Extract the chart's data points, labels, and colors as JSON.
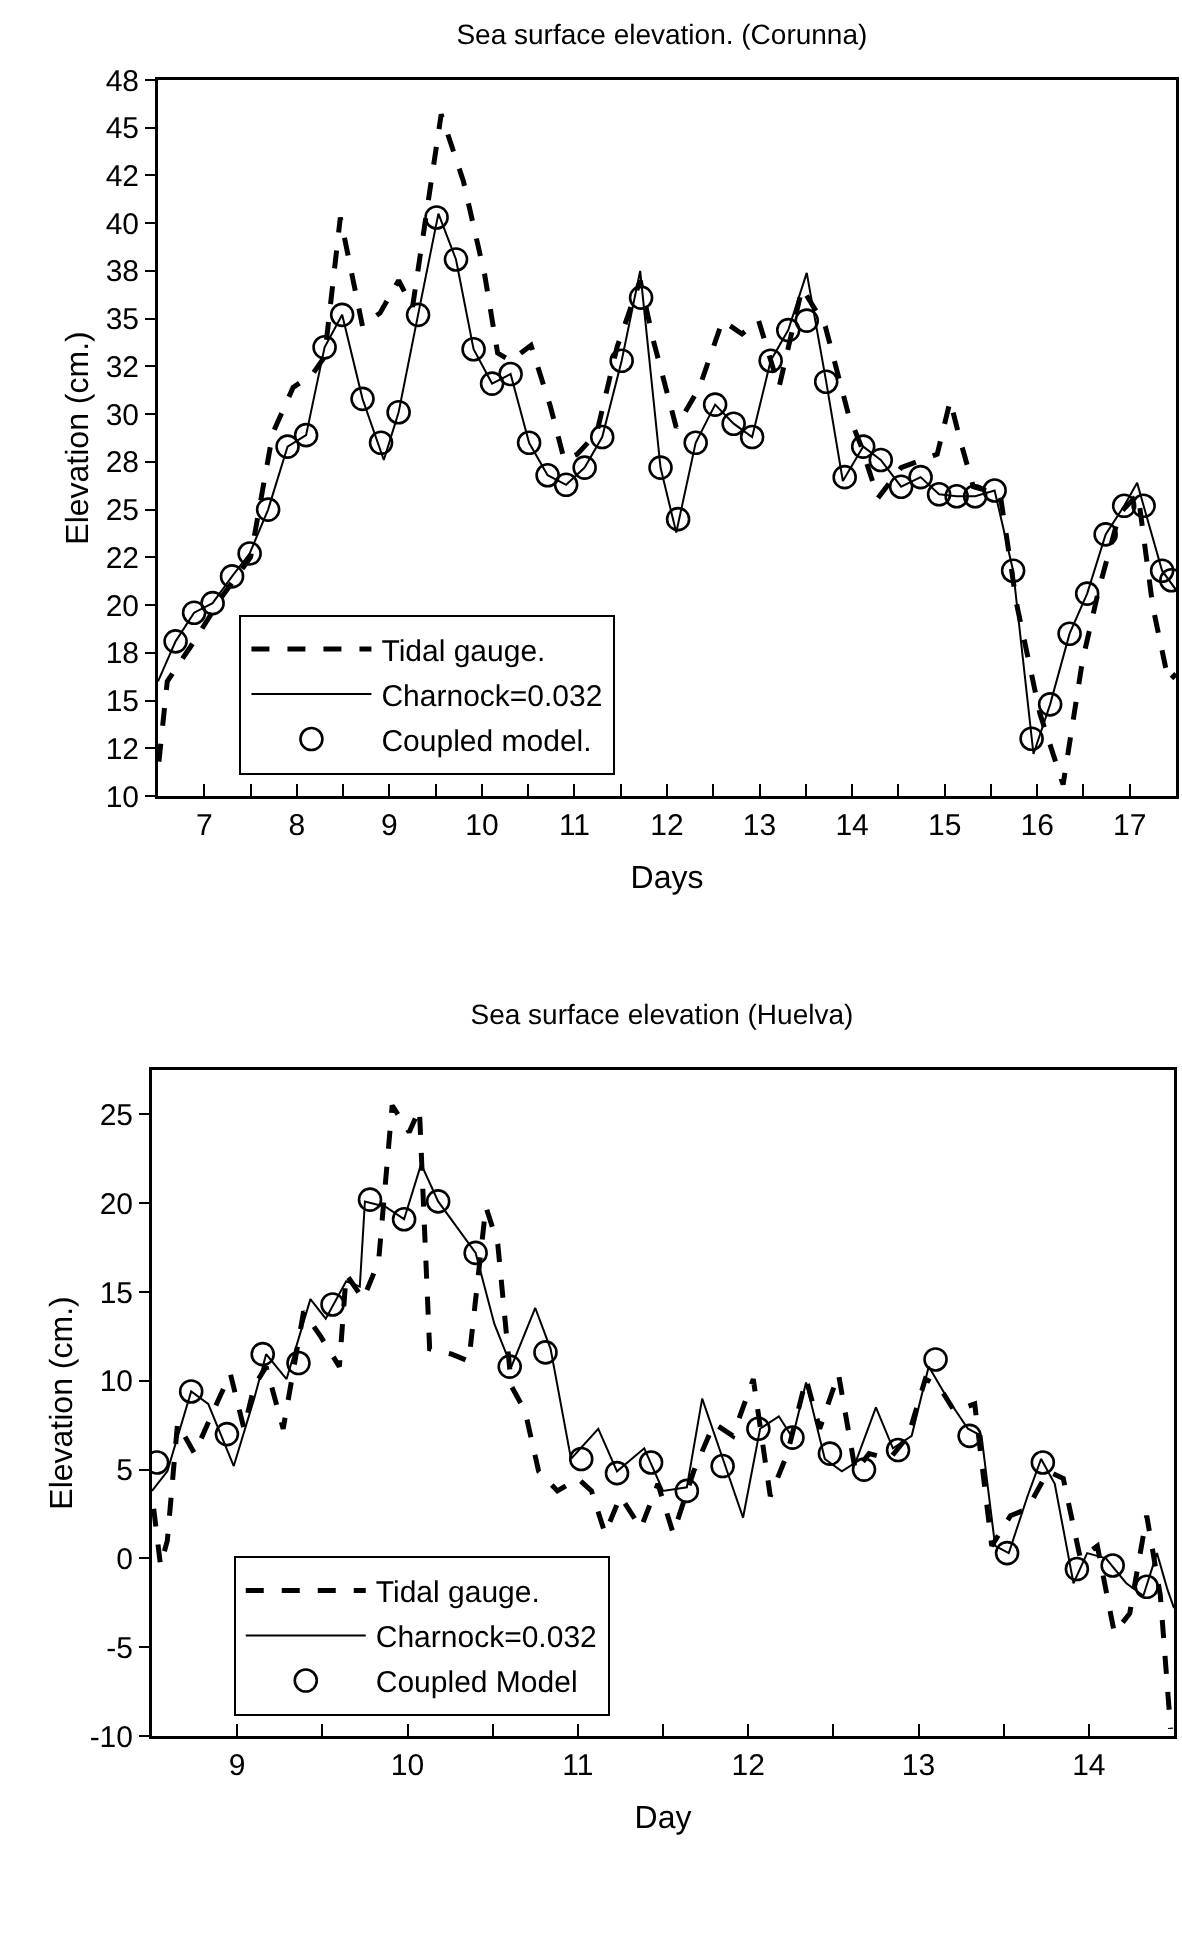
{
  "chart_data": [
    {
      "type": "line",
      "title": "Sea surface elevation. (Corunna)",
      "xlabel": "Days",
      "ylabel": "Elevation (cm.)",
      "xlim": [
        6.5,
        17.5
      ],
      "xticks": [
        7,
        {
          "value": 7.5,
          "label": null
        },
        8,
        {
          "value": 8.5,
          "label": null
        },
        9,
        {
          "value": 9.5,
          "label": null
        },
        10,
        {
          "value": 10.5,
          "label": null
        },
        11,
        {
          "value": 11.5,
          "label": null
        },
        12,
        {
          "value": 12.5,
          "label": null
        },
        13,
        {
          "value": 13.5,
          "label": null
        },
        14,
        {
          "value": 14.5,
          "label": null
        },
        15,
        {
          "value": 15.5,
          "label": null
        },
        16,
        {
          "value": 16.5,
          "label": null
        },
        17
      ],
      "ylim": [
        10,
        47.5
      ],
      "yticks": [
        10,
        {
          "value": 12.5,
          "label": "12"
        },
        15,
        {
          "value": 17.5,
          "label": "18"
        },
        20,
        {
          "value": 22.5,
          "label": "22"
        },
        25,
        {
          "value": 27.5,
          "label": "28"
        },
        30,
        {
          "value": 32.5,
          "label": "32"
        },
        35,
        {
          "value": 37.5,
          "label": "38"
        },
        40,
        {
          "value": 42.5,
          "label": "42"
        },
        45,
        {
          "value": 47.5,
          "label": "48"
        }
      ],
      "grid": false,
      "legend": "bottom left",
      "series": [
        {
          "name": "Tidal gauge.",
          "type": "line",
          "line_style": "dashed",
          "marker": "none",
          "color": "#000000",
          "x": [
            6.51,
            6.6,
            6.89,
            7.2,
            7.5,
            7.74,
            7.96,
            8.17,
            8.3,
            8.47,
            8.71,
            8.9,
            9.1,
            9.25,
            9.56,
            9.8,
            10.03,
            10.17,
            10.31,
            10.53,
            10.74,
            10.89,
            11.03,
            11.24,
            11.46,
            11.71,
            11.85,
            12.1,
            12.35,
            12.6,
            12.81,
            12.99,
            13.21,
            13.46,
            13.71,
            13.96,
            14.1,
            14.28,
            14.53,
            14.92,
            15.06,
            15.17,
            15.31,
            15.6,
            15.78,
            16.03,
            16.28,
            16.49,
            16.67,
            16.89,
            17.09,
            17.25,
            17.42,
            17.5
          ],
          "values": [
            11.8,
            16.0,
            18.1,
            20.5,
            22.5,
            29.0,
            31.4,
            32.1,
            33.0,
            40.3,
            34.6,
            35.3,
            37.0,
            35.6,
            45.7,
            42.2,
            37.3,
            33.2,
            32.8,
            33.6,
            30.4,
            27.6,
            27.9,
            29.0,
            33.5,
            37.0,
            33.9,
            29.3,
            31.4,
            34.9,
            34.2,
            34.9,
            31.4,
            36.6,
            34.6,
            30.0,
            28.3,
            25.6,
            27.2,
            27.9,
            30.7,
            28.6,
            26.2,
            25.8,
            20.0,
            14.3,
            10.6,
            17.1,
            20.9,
            24.8,
            25.8,
            19.9,
            16.0,
            16.4
          ]
        },
        {
          "name": "Charnock=0.032",
          "type": "line",
          "line_style": "solid",
          "marker": "none",
          "color": "#000000",
          "x": [
            6.5,
            6.69,
            6.89,
            7.09,
            7.3,
            7.49,
            7.69,
            7.9,
            8.1,
            8.3,
            8.49,
            8.71,
            8.94,
            9.1,
            9.31,
            9.53,
            9.72,
            9.91,
            10.11,
            10.31,
            10.51,
            10.71,
            10.91,
            11.11,
            11.3,
            11.51,
            11.71,
            11.93,
            12.1,
            12.31,
            12.52,
            12.72,
            12.92,
            13.12,
            13.31,
            13.51,
            13.72,
            13.9,
            14.12,
            14.31,
            14.53,
            14.74,
            14.94,
            15.13,
            15.33,
            15.54,
            15.74,
            15.96,
            16.14,
            16.35,
            16.54,
            16.74,
            16.94,
            17.08,
            17.15,
            17.35,
            17.5
          ],
          "values": [
            16.0,
            18.1,
            19.6,
            20.1,
            21.5,
            22.7,
            25.0,
            28.3,
            28.9,
            33.5,
            35.2,
            30.8,
            27.6,
            30.1,
            35.2,
            40.5,
            38.1,
            33.4,
            31.6,
            32.1,
            28.5,
            26.8,
            26.3,
            27.2,
            28.8,
            32.8,
            37.5,
            27.2,
            23.8,
            28.5,
            30.5,
            29.5,
            28.8,
            32.8,
            34.4,
            37.4,
            31.7,
            26.5,
            28.3,
            27.6,
            26.2,
            26.7,
            25.8,
            25.7,
            25.7,
            26.0,
            21.8,
            12.2,
            14.8,
            18.5,
            20.6,
            23.7,
            25.2,
            26.4,
            25.2,
            21.8,
            20.8
          ]
        },
        {
          "name": "Coupled model.",
          "type": "scatter",
          "marker": "circle",
          "color": "#000000",
          "x": [
            6.69,
            6.89,
            7.09,
            7.3,
            7.49,
            7.69,
            7.9,
            8.1,
            8.3,
            8.49,
            8.71,
            8.91,
            9.1,
            9.31,
            9.51,
            9.72,
            9.91,
            10.11,
            10.31,
            10.51,
            10.71,
            10.91,
            11.11,
            11.3,
            11.51,
            11.72,
            11.93,
            12.12,
            12.31,
            12.52,
            12.72,
            12.92,
            13.12,
            13.31,
            13.51,
            13.72,
            13.92,
            14.12,
            14.31,
            14.53,
            14.74,
            14.94,
            15.13,
            15.33,
            15.54,
            15.74,
            15.94,
            16.14,
            16.35,
            16.54,
            16.74,
            16.94,
            17.15,
            17.35,
            17.45
          ],
          "values": [
            18.1,
            19.6,
            20.1,
            21.5,
            22.7,
            25.0,
            28.3,
            28.9,
            33.5,
            35.2,
            30.8,
            28.5,
            30.1,
            35.2,
            40.3,
            38.1,
            33.4,
            31.6,
            32.1,
            28.5,
            26.8,
            26.3,
            27.2,
            28.8,
            32.8,
            36.1,
            27.2,
            24.5,
            28.5,
            30.5,
            29.5,
            28.8,
            32.8,
            34.4,
            34.9,
            31.7,
            26.7,
            28.3,
            27.6,
            26.2,
            26.7,
            25.8,
            25.7,
            25.7,
            26.0,
            21.8,
            13.0,
            14.8,
            18.5,
            20.6,
            23.7,
            25.2,
            25.2,
            21.8,
            21.3
          ]
        }
      ]
    },
    {
      "type": "line",
      "title": "Sea surface elevation (Huelva)",
      "xlabel": "Day",
      "ylabel": "Elevation (cm.)",
      "xlim": [
        8.5,
        14.5
      ],
      "xticks": [
        9,
        {
          "value": 9.5,
          "label": null
        },
        10,
        {
          "value": 10.5,
          "label": null
        },
        11,
        {
          "value": 11.5,
          "label": null
        },
        12,
        {
          "value": 12.5,
          "label": null
        },
        13,
        {
          "value": 13.5,
          "label": null
        },
        14
      ],
      "ylim": [
        -10,
        27.5
      ],
      "yticks": [
        -10,
        -5,
        0,
        5,
        10,
        15,
        20,
        25
      ],
      "grid": false,
      "legend": "bottom left",
      "series": [
        {
          "name": "Tidal gauge.",
          "type": "line",
          "line_style": "dashed",
          "marker": "none",
          "color": "#000000",
          "x": [
            8.51,
            8.55,
            8.59,
            8.65,
            8.75,
            8.86,
            8.96,
            9.04,
            9.1,
            9.17,
            9.27,
            9.39,
            9.49,
            9.6,
            9.64,
            9.74,
            9.83,
            9.91,
            10.01,
            10.07,
            10.13,
            10.26,
            10.36,
            10.46,
            10.53,
            10.61,
            10.69,
            10.77,
            10.88,
            11.0,
            11.08,
            11.16,
            11.25,
            11.37,
            11.47,
            11.56,
            11.68,
            11.8,
            11.91,
            12.03,
            12.13,
            12.23,
            12.34,
            12.42,
            12.53,
            12.63,
            12.71,
            12.83,
            12.94,
            13.04,
            13.12,
            13.21,
            13.33,
            13.43,
            13.54,
            13.64,
            13.76,
            13.85,
            13.95,
            14.05,
            14.15,
            14.24,
            14.34,
            14.42,
            14.48
          ],
          "values": [
            2.8,
            -0.4,
            1.0,
            7.6,
            5.9,
            8.3,
            10.4,
            7.3,
            9.7,
            10.8,
            7.3,
            13.9,
            12.5,
            10.8,
            16.0,
            14.6,
            16.7,
            25.5,
            24.0,
            25.3,
            11.8,
            11.5,
            11.1,
            19.8,
            17.7,
            9.7,
            8.3,
            4.9,
            3.8,
            4.5,
            3.8,
            1.4,
            3.5,
            1.7,
            4.2,
            1.4,
            4.9,
            7.6,
            6.9,
            10.1,
            3.5,
            5.9,
            10.1,
            7.3,
            10.4,
            4.9,
            5.9,
            5.6,
            6.9,
            10.1,
            9.7,
            8.3,
            8.7,
            0.7,
            2.4,
            2.8,
            4.9,
            4.5,
            0.0,
            0.7,
            -4.2,
            -3.1,
            2.4,
            -2.1,
            -9.6
          ]
        },
        {
          "name": "Charnock=0.032",
          "type": "line",
          "line_style": "solid",
          "marker": "none",
          "color": "#000000",
          "x": [
            8.5,
            8.59,
            8.73,
            8.83,
            8.98,
            9.1,
            9.17,
            9.29,
            9.43,
            9.52,
            9.64,
            9.72,
            9.75,
            9.87,
            9.98,
            10.08,
            10.18,
            10.4,
            10.51,
            10.61,
            10.75,
            10.84,
            10.96,
            11.12,
            11.23,
            11.39,
            11.5,
            11.64,
            11.73,
            11.83,
            11.97,
            12.07,
            12.18,
            12.26,
            12.34,
            12.45,
            12.55,
            12.63,
            12.75,
            12.85,
            12.96,
            13.06,
            13.17,
            13.29,
            13.37,
            13.45,
            13.53,
            13.64,
            13.72,
            13.8,
            13.91,
            13.99,
            14.1,
            14.22,
            14.32,
            14.4,
            14.46,
            14.5
          ],
          "values": [
            3.8,
            4.9,
            9.4,
            8.7,
            5.2,
            9.0,
            11.5,
            10.1,
            14.6,
            13.5,
            15.6,
            15.3,
            20.1,
            19.8,
            19.1,
            22.2,
            20.1,
            17.2,
            13.2,
            10.8,
            14.1,
            11.8,
            5.6,
            7.3,
            4.9,
            6.2,
            3.8,
            4.0,
            9.0,
            6.2,
            2.3,
            7.3,
            8.0,
            6.8,
            9.9,
            5.6,
            4.9,
            5.4,
            8.5,
            6.2,
            6.9,
            10.8,
            9.0,
            7.3,
            6.9,
            0.7,
            0.3,
            3.5,
            5.6,
            4.2,
            -1.4,
            0.3,
            0.0,
            -1.4,
            -2.1,
            0.3,
            -1.7,
            -2.8
          ]
        },
        {
          "name": "Coupled Model",
          "type": "scatter",
          "marker": "circle",
          "color": "#000000",
          "x": [
            8.53,
            8.73,
            8.94,
            9.15,
            9.36,
            9.56,
            9.78,
            9.98,
            10.18,
            10.4,
            10.6,
            10.81,
            11.02,
            11.23,
            11.43,
            11.64,
            11.85,
            12.06,
            12.26,
            12.48,
            12.68,
            12.88,
            13.1,
            13.3,
            13.52,
            13.73,
            13.93,
            14.14,
            14.34
          ],
          "values": [
            5.4,
            9.4,
            7.0,
            11.5,
            11.0,
            14.3,
            20.2,
            19.1,
            20.1,
            17.2,
            10.8,
            11.6,
            5.6,
            4.8,
            5.4,
            3.8,
            5.2,
            7.3,
            6.8,
            5.9,
            5.0,
            6.1,
            11.2,
            6.9,
            0.3,
            5.4,
            -0.6,
            -0.4,
            -1.6
          ]
        }
      ]
    }
  ]
}
